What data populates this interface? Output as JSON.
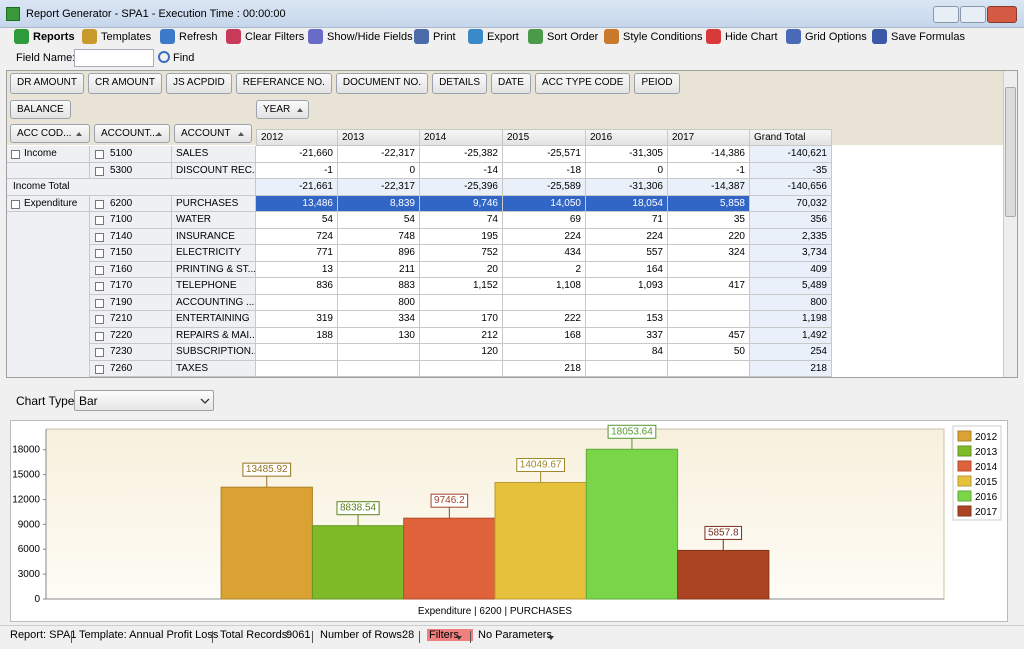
{
  "window": {
    "title": "Report Generator - SPA1 - Execution Time : 00:00:00"
  },
  "toolbar": [
    "Reports",
    "Templates",
    "Refresh",
    "Clear Filters",
    "Show/Hide Fields",
    "Print",
    "Export",
    "Sort Order",
    "Style Conditions",
    "Hide Chart",
    "Grid Options",
    "Save Formulas"
  ],
  "field_search": {
    "label": "Field Name:",
    "button": "Find"
  },
  "pivot": {
    "filter_fields": [
      "DR AMOUNT",
      "CR AMOUNT",
      "JS ACPDID",
      "REFERANCE NO.",
      "DOCUMENT NO.",
      "DETAILS",
      "DATE",
      "ACC TYPE CODE",
      "PEIOD"
    ],
    "data_fields": [
      "BALANCE"
    ],
    "column_fields": [
      "YEAR"
    ],
    "row_fields": [
      "ACC COD...",
      "ACCOUNT...",
      "ACCOUNT"
    ],
    "columns": [
      "2012",
      "2013",
      "2014",
      "2015",
      "2016",
      "2017",
      "Grand Total"
    ],
    "rows": [
      {
        "group": "Income",
        "code": "5100",
        "name": "SALES",
        "cells": [
          "-21,660",
          "-22,317",
          "-25,382",
          "-25,571",
          "-31,305",
          "-14,386",
          "-140,621"
        ]
      },
      {
        "code": "5300",
        "name": "DISCOUNT REC...",
        "cells": [
          "-1",
          "0",
          "-14",
          "-18",
          "0",
          "-1",
          "-35"
        ]
      },
      {
        "total": "Income Total",
        "cells": [
          "-21,661",
          "-22,317",
          "-25,396",
          "-25,589",
          "-31,306",
          "-14,387",
          "-140,656"
        ]
      },
      {
        "group": "Expenditure",
        "code": "6200",
        "name": "PURCHASES",
        "selected": true,
        "cells": [
          "13,486",
          "8,839",
          "9,746",
          "14,050",
          "18,054",
          "5,858",
          "70,032"
        ]
      },
      {
        "code": "7100",
        "name": "WATER",
        "cells": [
          "54",
          "54",
          "74",
          "69",
          "71",
          "35",
          "356"
        ]
      },
      {
        "code": "7140",
        "name": "INSURANCE",
        "cells": [
          "724",
          "748",
          "195",
          "224",
          "224",
          "220",
          "2,335"
        ]
      },
      {
        "code": "7150",
        "name": "ELECTRICITY",
        "cells": [
          "771",
          "896",
          "752",
          "434",
          "557",
          "324",
          "3,734"
        ]
      },
      {
        "code": "7160",
        "name": "PRINTING & ST...",
        "cells": [
          "13",
          "211",
          "20",
          "2",
          "164",
          null,
          "409"
        ]
      },
      {
        "code": "7170",
        "name": "TELEPHONE",
        "cells": [
          "836",
          "883",
          "1,152",
          "1,108",
          "1,093",
          "417",
          "5,489"
        ]
      },
      {
        "code": "7190",
        "name": "ACCOUNTING ...",
        "cells": [
          null,
          "800",
          null,
          null,
          null,
          null,
          "800"
        ]
      },
      {
        "code": "7210",
        "name": "ENTERTAINING",
        "cells": [
          "319",
          "334",
          "170",
          "222",
          "153",
          null,
          "1,198"
        ]
      },
      {
        "code": "7220",
        "name": "REPAIRS & MAI...",
        "cells": [
          "188",
          "130",
          "212",
          "168",
          "337",
          "457",
          "1,492"
        ]
      },
      {
        "code": "7230",
        "name": "SUBSCRIPTION...",
        "cells": [
          null,
          null,
          "120",
          null,
          "84",
          "50",
          "254"
        ]
      },
      {
        "code": "7260",
        "name": "TAXES",
        "cells": [
          null,
          null,
          null,
          "218",
          null,
          null,
          "218"
        ]
      }
    ]
  },
  "chart_type": {
    "label": "Chart Type",
    "value": "Bar"
  },
  "chart_data": {
    "type": "bar",
    "categories": [
      "Expenditure | 6200 | PURCHASES"
    ],
    "series": [
      {
        "name": "2012",
        "color": "#d9a232",
        "values": [
          13485.92
        ]
      },
      {
        "name": "2013",
        "color": "#7fba28",
        "values": [
          8838.54
        ]
      },
      {
        "name": "2014",
        "color": "#e0623a",
        "values": [
          9746.2
        ]
      },
      {
        "name": "2015",
        "color": "#e6c23c",
        "values": [
          14049.67
        ]
      },
      {
        "name": "2016",
        "color": "#7ad648",
        "values": [
          18053.64
        ]
      },
      {
        "name": "2017",
        "color": "#aa4422",
        "values": [
          5857.8
        ]
      }
    ],
    "ylim": [
      0,
      20500
    ],
    "yticks": [
      0,
      3000,
      6000,
      9000,
      12000,
      15000,
      18000
    ],
    "grid": false,
    "legend": "right"
  },
  "status_bar": {
    "report": "Report: SPA1",
    "template": "Template: Annual Profit  Loss",
    "total_records_label": "Total Records:",
    "total_records": "9061",
    "rows_label": "Number of Rows:",
    "rows": "28",
    "filters": "Filters",
    "parameters": "No Parameters"
  }
}
